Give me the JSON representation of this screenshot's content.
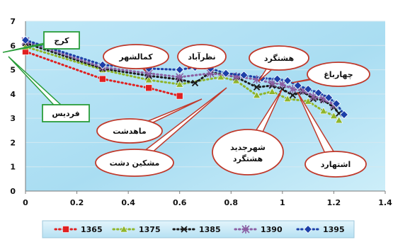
{
  "chart_data": {
    "type": "scatter",
    "xlim": [
      0,
      1.4
    ],
    "ylim": [
      0,
      7
    ],
    "x_ticks": [
      "0",
      "0.2",
      "0.4",
      "0.6",
      "0.8",
      "1",
      "1.2",
      "1.4"
    ],
    "y_ticks": [
      "0",
      "1",
      "2",
      "3",
      "4",
      "5",
      "6",
      "7"
    ],
    "grid": "horizontal",
    "legend_position": "bottom",
    "series": [
      {
        "name": "1365",
        "color": "#e02020",
        "marker": "square",
        "points": [
          [
            0,
            5.75
          ],
          [
            0.3,
            4.62
          ],
          [
            0.48,
            4.25
          ],
          [
            0.6,
            3.92
          ]
        ]
      },
      {
        "name": "1375",
        "color": "#8fb52a",
        "marker": "triangle",
        "points": [
          [
            0,
            5.95
          ],
          [
            0.3,
            5.0
          ],
          [
            0.48,
            4.58
          ],
          [
            0.6,
            4.4
          ],
          [
            0.76,
            4.7
          ],
          [
            0.82,
            4.55
          ],
          [
            0.9,
            3.95
          ],
          [
            0.96,
            4.1
          ],
          [
            1.02,
            3.8
          ],
          [
            1.1,
            3.7
          ],
          [
            1.16,
            3.3
          ],
          [
            1.2,
            3.1
          ],
          [
            1.22,
            2.92
          ]
        ]
      },
      {
        "name": "1385",
        "color": "#1b1b1b",
        "marker": "x",
        "points": [
          [
            0,
            6.1
          ],
          [
            0.3,
            5.05
          ],
          [
            0.48,
            4.75
          ],
          [
            0.6,
            4.6
          ],
          [
            0.66,
            4.45
          ],
          [
            0.72,
            4.9
          ],
          [
            0.82,
            4.7
          ],
          [
            0.9,
            4.28
          ],
          [
            0.96,
            4.35
          ],
          [
            1.0,
            4.2
          ],
          [
            1.04,
            3.95
          ],
          [
            1.08,
            4.1
          ],
          [
            1.12,
            3.8
          ],
          [
            1.16,
            3.75
          ],
          [
            1.2,
            3.45
          ],
          [
            1.22,
            3.2
          ]
        ]
      },
      {
        "name": "1390",
        "color": "#8b5fa3",
        "marker": "star",
        "points": [
          [
            0,
            6.18
          ],
          [
            0.3,
            5.1
          ],
          [
            0.48,
            4.85
          ],
          [
            0.6,
            4.7
          ],
          [
            0.72,
            4.85
          ],
          [
            0.82,
            4.72
          ],
          [
            0.9,
            4.6
          ],
          [
            0.96,
            4.45
          ],
          [
            1.0,
            4.4
          ],
          [
            1.04,
            4.2
          ],
          [
            1.08,
            4.15
          ],
          [
            1.12,
            3.9
          ],
          [
            1.16,
            3.8
          ],
          [
            1.2,
            3.55
          ]
        ]
      },
      {
        "name": "1395",
        "color": "#1c3fa8",
        "marker": "diamond",
        "points": [
          [
            0,
            6.22
          ],
          [
            0.3,
            5.2
          ],
          [
            0.48,
            5.05
          ],
          [
            0.6,
            5.0
          ],
          [
            0.66,
            5.1
          ],
          [
            0.72,
            5.05
          ],
          [
            0.78,
            4.85
          ],
          [
            0.85,
            4.78
          ],
          [
            0.92,
            4.65
          ],
          [
            0.98,
            4.62
          ],
          [
            1.02,
            4.55
          ],
          [
            1.06,
            4.35
          ],
          [
            1.1,
            4.2
          ],
          [
            1.14,
            4.05
          ],
          [
            1.18,
            3.85
          ],
          [
            1.21,
            3.6
          ],
          [
            1.24,
            3.15
          ]
        ]
      }
    ],
    "callouts": [
      {
        "text": "کرج"
      },
      {
        "text": "کمالشهر"
      },
      {
        "text": "نظرآباد"
      },
      {
        "text": "هشتگرد"
      },
      {
        "text": "چهارباغ"
      },
      {
        "text": "فردیس"
      },
      {
        "text": "ماهدشت"
      },
      {
        "text": "مشکین دشت"
      },
      {
        "text": "شهرجدید"
      },
      {
        "text": "هشتگرد"
      },
      {
        "text": "اشتهارد"
      }
    ]
  }
}
